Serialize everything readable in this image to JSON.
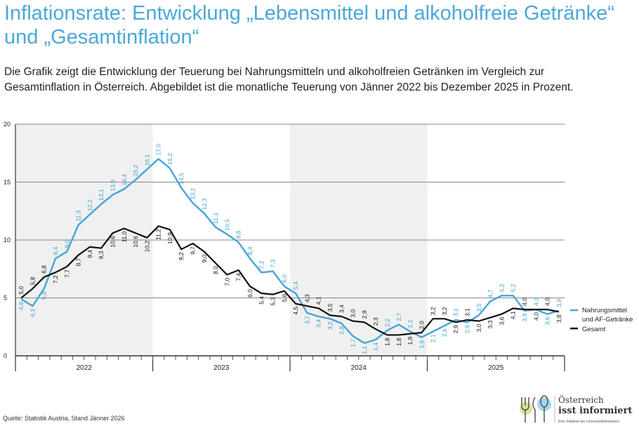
{
  "title": "Inflationsrate: Entwicklung „Lebensmittel und alkoholfreie Getränke“ und „Gesamtinflation“",
  "subtitle": "Die Grafik zeigt die Entwicklung der Teuerung bei Nahrungsmitteln und alkoholfreien Getränken im Vergleich zur Gesamtinflation in Österreich. Abgebildet ist die monatliche Teuerung von Jänner 2022 bis Dezember 2025 in Prozent.",
  "source": "Quelle: Statistik Austria, Stand Jänner 2026",
  "logo": {
    "line1": "Österreich",
    "line2": "isst informiert",
    "line3": "Eine Initiative der Lebensmittelindustrie"
  },
  "chart_data": {
    "type": "line",
    "years": [
      "2022",
      "2023",
      "2024",
      "2025"
    ],
    "yticks": [
      0,
      5,
      10,
      15,
      20
    ],
    "ylim": [
      0,
      20
    ],
    "grid": true,
    "legend_position": "right",
    "series": [
      {
        "name": "Nahrungsmittel und AF-Getränke",
        "color": "#4aa8d8",
        "values": [
          4.9,
          4.3,
          5.8,
          8.4,
          9.0,
          11.3,
          12.2,
          13.1,
          13.9,
          14.4,
          15.2,
          16.1,
          17.0,
          16.2,
          14.5,
          13.2,
          12.3,
          11.1,
          10.5,
          9.8,
          8.4,
          7.2,
          7.3,
          6.0,
          5.4,
          3.7,
          3.4,
          3.2,
          2.8,
          1.7,
          1.1,
          1.4,
          2.2,
          2.7,
          2.1,
          1.6,
          2.1,
          2.6,
          3.1,
          2.9,
          3.5,
          4.7,
          5.2,
          5.2,
          3.9,
          4.0,
          3.6,
          3.9
        ]
      },
      {
        "name": "Gesamt",
        "color": "#111111",
        "values": [
          5.0,
          5.8,
          6.8,
          7.2,
          7.7,
          8.7,
          9.4,
          9.3,
          10.6,
          11.0,
          10.6,
          10.2,
          11.2,
          10.9,
          9.2,
          9.7,
          9.0,
          8.0,
          7.0,
          7.4,
          6.0,
          5.4,
          5.3,
          5.6,
          4.5,
          4.3,
          4.1,
          3.5,
          3.4,
          3.0,
          2.9,
          2.3,
          1.8,
          1.8,
          1.9,
          2.0,
          3.2,
          3.2,
          2.9,
          3.1,
          3.0,
          3.3,
          3.6,
          4.1,
          4.0,
          4.0,
          4.0,
          3.8
        ]
      }
    ],
    "legend": [
      "Nahrungsmittel\nund AF-Getränke",
      "Gesamt"
    ]
  }
}
